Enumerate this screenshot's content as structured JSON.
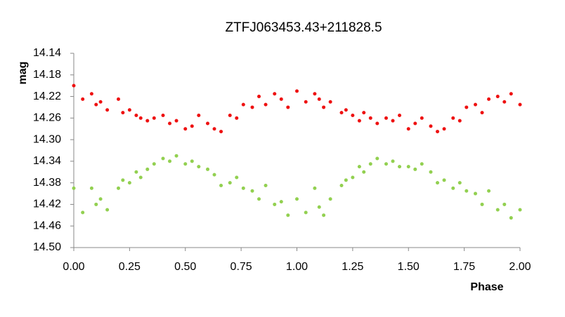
{
  "chart_data": {
    "type": "scatter",
    "title": "ZTFJ063453.43+211828.5",
    "x_label": "Phase",
    "y_label": "mag",
    "x": [
      0.0,
      0.04,
      0.08,
      0.1,
      0.12,
      0.15,
      0.2,
      0.22,
      0.25,
      0.28,
      0.3,
      0.33,
      0.36,
      0.4,
      0.43,
      0.46,
      0.5,
      0.53,
      0.56,
      0.6,
      0.63,
      0.66,
      0.7,
      0.73,
      0.76,
      0.8,
      0.83,
      0.86,
      0.9,
      0.93,
      0.96,
      1.0,
      1.04,
      1.08,
      1.1,
      1.12,
      1.15,
      1.2,
      1.22,
      1.25,
      1.28,
      1.3,
      1.33,
      1.36,
      1.4,
      1.43,
      1.46,
      1.5,
      1.53,
      1.56,
      1.6,
      1.63,
      1.66,
      1.7,
      1.73,
      1.76,
      1.8,
      1.83,
      1.86,
      1.9,
      1.93,
      1.96,
      2.0
    ],
    "series": [
      {
        "color": "#ee1111",
        "values": [
          14.2,
          14.225,
          14.215,
          14.235,
          14.23,
          14.245,
          14.225,
          14.25,
          14.245,
          14.255,
          14.26,
          14.265,
          14.26,
          14.255,
          14.27,
          14.265,
          14.28,
          14.275,
          14.255,
          14.27,
          14.28,
          14.285,
          14.255,
          14.26,
          14.235,
          14.24,
          14.22,
          14.235,
          14.215,
          14.225,
          14.24,
          14.21,
          14.23,
          14.215,
          14.225,
          14.24,
          14.23,
          14.25,
          14.245,
          14.255,
          14.265,
          14.25,
          14.26,
          14.27,
          14.26,
          14.265,
          14.255,
          14.28,
          14.27,
          14.26,
          14.275,
          14.285,
          14.28,
          14.26,
          14.265,
          14.24,
          14.235,
          14.25,
          14.225,
          14.22,
          14.23,
          14.215,
          14.235
        ]
      },
      {
        "color": "#92d050",
        "values": [
          14.39,
          14.435,
          14.39,
          14.42,
          14.41,
          14.43,
          14.39,
          14.375,
          14.38,
          14.36,
          14.37,
          14.355,
          14.345,
          14.335,
          14.34,
          14.33,
          14.345,
          14.34,
          14.35,
          14.355,
          14.365,
          14.385,
          14.38,
          14.37,
          14.39,
          14.395,
          14.41,
          14.385,
          14.42,
          14.415,
          14.44,
          14.41,
          14.435,
          14.39,
          14.425,
          14.44,
          14.41,
          14.385,
          14.375,
          14.37,
          14.35,
          14.36,
          14.345,
          14.335,
          14.345,
          14.34,
          14.35,
          14.35,
          14.355,
          14.345,
          14.36,
          14.38,
          14.375,
          14.39,
          14.38,
          14.395,
          14.4,
          14.42,
          14.395,
          14.43,
          14.42,
          14.445,
          14.43
        ]
      }
    ],
    "xlim": [
      0,
      2
    ],
    "xticks": [
      {
        "value": 0,
        "label": "0.00"
      },
      {
        "value": 0.25,
        "label": "0.25"
      },
      {
        "value": 0.5,
        "label": "0.50"
      },
      {
        "value": 0.75,
        "label": "0.75"
      },
      {
        "value": 1,
        "label": "1.00"
      },
      {
        "value": 1.25,
        "label": "1.25"
      },
      {
        "value": 1.5,
        "label": "1.50"
      },
      {
        "value": 1.75,
        "label": "1.75"
      },
      {
        "value": 2,
        "label": "2.00"
      }
    ],
    "ylim": [
      14.14,
      14.5
    ],
    "y_inverted": true,
    "yticks": [
      14.14,
      14.18,
      14.22,
      14.26,
      {
        "value": 14.3,
        "label": "14.30"
      },
      14.34,
      14.38,
      14.42,
      14.46,
      {
        "value": 14.5,
        "label": "14.50"
      }
    ],
    "grid": false
  }
}
